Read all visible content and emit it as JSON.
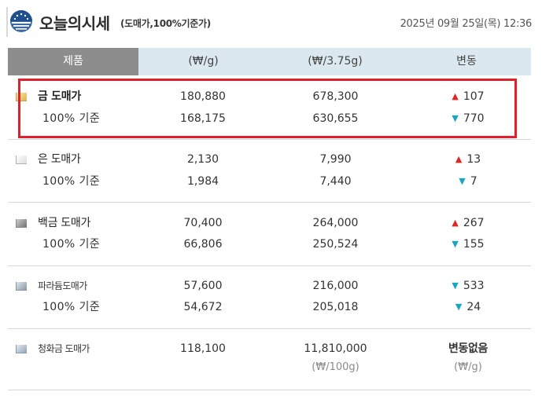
{
  "header": {
    "title": "오늘의시세",
    "subtitle": "(도매가,100%기준가)",
    "date": "2025년 09월 25일(목) 12:36",
    "logo_icon": "globe-icon"
  },
  "table": {
    "columns": [
      "제품",
      "(₩/g)",
      "(₩/3.75g)",
      "변동"
    ],
    "rows": [
      {
        "name": "금 도매가",
        "swatch": "gold",
        "wholesale": {
          "per_g": "180,880",
          "per_don": "678,300",
          "dir": "up",
          "change": "107"
        },
        "standard": {
          "label": "100% 기준",
          "per_g": "168,175",
          "per_don": "630,655",
          "dir": "down",
          "change": "770"
        }
      },
      {
        "name": "은 도매가",
        "swatch": "silver",
        "wholesale": {
          "per_g": "2,130",
          "per_don": "7,990",
          "dir": "up",
          "change": "13"
        },
        "standard": {
          "label": "100% 기준",
          "per_g": "1,984",
          "per_don": "7,440",
          "dir": "down",
          "change": "7"
        }
      },
      {
        "name": "백금 도매가",
        "swatch": "platinum",
        "wholesale": {
          "per_g": "70,400",
          "per_don": "264,000",
          "dir": "up",
          "change": "267"
        },
        "standard": {
          "label": "100% 기준",
          "per_g": "66,806",
          "per_don": "250,524",
          "dir": "down",
          "change": "155"
        }
      },
      {
        "name": "파라듐도매가",
        "swatch": "palladium",
        "wholesale": {
          "per_g": "57,600",
          "per_don": "216,000",
          "dir": "down",
          "change": "533"
        },
        "standard": {
          "label": "100% 기준",
          "per_g": "54,672",
          "per_don": "205,018",
          "dir": "down",
          "change": "24"
        }
      },
      {
        "name": "청화금 도매가",
        "swatch": "schaal",
        "wholesale": {
          "per_g": "118,100",
          "per_don": "11,810,000",
          "change_text": "변동없음"
        },
        "notes": {
          "per_don_unit": "(₩/100g)",
          "change_unit": "(₩/g)"
        }
      }
    ]
  },
  "symbols": {
    "up": "▲",
    "down": "▼"
  },
  "colors": {
    "up": "#e02525",
    "down": "#19a5c7",
    "highlight": "#e0202a",
    "header_bg": "#dbe8ef",
    "header_first_bg": "#8d8d8d"
  }
}
